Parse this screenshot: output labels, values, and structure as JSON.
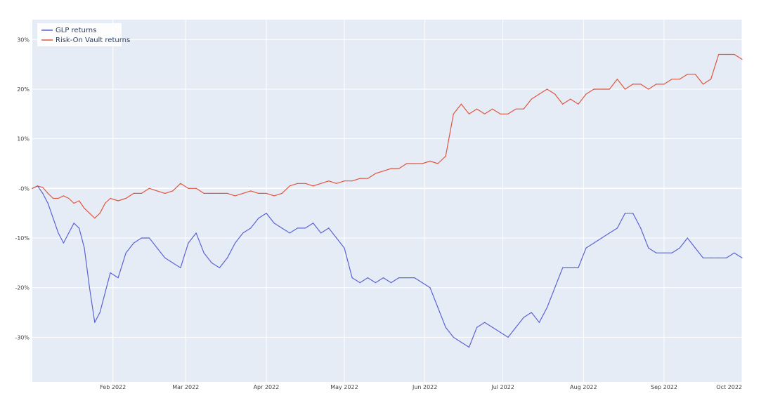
{
  "chart_data": {
    "type": "line",
    "title": "",
    "xlabel": "",
    "ylabel": "",
    "x_ticks": [
      "Feb 2022",
      "Mar 2022",
      "Apr 2022",
      "May 2022",
      "Jun 2022",
      "Jul 2022",
      "Aug 2022",
      "Sep 2022",
      "Oct 2022"
    ],
    "y_ticks": [
      "-30%",
      "-20%",
      "-10%",
      "-0%",
      "10%",
      "20%",
      "30%"
    ],
    "xlim": [
      "2022-01-01",
      "2022-10-01"
    ],
    "ylim": [
      -0.39,
      0.34
    ],
    "grid": true,
    "legend_position": "top-left",
    "colors": {
      "plot_bg": "#e5ecf6",
      "grid": "#ffffff",
      "glp": "#5a64d2",
      "riskon": "#e2553f"
    },
    "series": [
      {
        "name": "GLP returns",
        "color": "#5a64d2",
        "x": [
          "2022-01-01",
          "2022-01-03",
          "2022-01-05",
          "2022-01-07",
          "2022-01-09",
          "2022-01-11",
          "2022-01-13",
          "2022-01-15",
          "2022-01-17",
          "2022-01-19",
          "2022-01-21",
          "2022-01-23",
          "2022-01-25",
          "2022-01-27",
          "2022-01-29",
          "2022-01-31",
          "2022-02-03",
          "2022-02-06",
          "2022-02-09",
          "2022-02-12",
          "2022-02-15",
          "2022-02-18",
          "2022-02-21",
          "2022-02-24",
          "2022-02-27",
          "2022-03-02",
          "2022-03-05",
          "2022-03-08",
          "2022-03-11",
          "2022-03-14",
          "2022-03-17",
          "2022-03-20",
          "2022-03-23",
          "2022-03-26",
          "2022-03-29",
          "2022-04-01",
          "2022-04-04",
          "2022-04-07",
          "2022-04-10",
          "2022-04-13",
          "2022-04-16",
          "2022-04-19",
          "2022-04-22",
          "2022-04-25",
          "2022-04-28",
          "2022-05-01",
          "2022-05-04",
          "2022-05-07",
          "2022-05-10",
          "2022-05-13",
          "2022-05-16",
          "2022-05-19",
          "2022-05-22",
          "2022-05-25",
          "2022-05-28",
          "2022-05-31",
          "2022-06-03",
          "2022-06-06",
          "2022-06-09",
          "2022-06-12",
          "2022-06-15",
          "2022-06-18",
          "2022-06-21",
          "2022-06-24",
          "2022-06-27",
          "2022-06-30",
          "2022-07-03",
          "2022-07-06",
          "2022-07-09",
          "2022-07-12",
          "2022-07-15",
          "2022-07-18",
          "2022-07-21",
          "2022-07-24",
          "2022-07-27",
          "2022-07-30",
          "2022-08-02",
          "2022-08-05",
          "2022-08-08",
          "2022-08-11",
          "2022-08-14",
          "2022-08-17",
          "2022-08-20",
          "2022-08-23",
          "2022-08-26",
          "2022-08-29",
          "2022-09-01",
          "2022-09-04",
          "2022-09-07",
          "2022-09-10",
          "2022-09-13",
          "2022-09-16",
          "2022-09-19",
          "2022-09-22",
          "2022-09-25",
          "2022-09-28",
          "2022-10-01"
        ],
        "y": [
          0.0,
          0.005,
          -0.01,
          -0.03,
          -0.06,
          -0.09,
          -0.11,
          -0.09,
          -0.07,
          -0.08,
          -0.12,
          -0.2,
          -0.27,
          -0.25,
          -0.21,
          -0.17,
          -0.18,
          -0.13,
          -0.11,
          -0.1,
          -0.1,
          -0.12,
          -0.14,
          -0.15,
          -0.16,
          -0.11,
          -0.09,
          -0.13,
          -0.15,
          -0.16,
          -0.14,
          -0.11,
          -0.09,
          -0.08,
          -0.06,
          -0.05,
          -0.07,
          -0.08,
          -0.09,
          -0.08,
          -0.08,
          -0.07,
          -0.09,
          -0.08,
          -0.1,
          -0.12,
          -0.18,
          -0.19,
          -0.18,
          -0.19,
          -0.18,
          -0.19,
          -0.18,
          -0.18,
          -0.18,
          -0.19,
          -0.2,
          -0.24,
          -0.28,
          -0.3,
          -0.31,
          -0.32,
          -0.28,
          -0.27,
          -0.28,
          -0.29,
          -0.3,
          -0.28,
          -0.26,
          -0.25,
          -0.27,
          -0.24,
          -0.2,
          -0.16,
          -0.16,
          -0.16,
          -0.12,
          -0.11,
          -0.1,
          -0.09,
          -0.08,
          -0.05,
          -0.05,
          -0.08,
          -0.12,
          -0.13,
          -0.13,
          -0.13,
          -0.12,
          -0.1,
          -0.12,
          -0.14,
          -0.14,
          -0.14,
          -0.14,
          -0.13,
          -0.14
        ]
      },
      {
        "name": "Risk-On Vault returns",
        "color": "#e2553f",
        "x": [
          "2022-01-01",
          "2022-01-03",
          "2022-01-05",
          "2022-01-07",
          "2022-01-09",
          "2022-01-11",
          "2022-01-13",
          "2022-01-15",
          "2022-01-17",
          "2022-01-19",
          "2022-01-21",
          "2022-01-23",
          "2022-01-25",
          "2022-01-27",
          "2022-01-29",
          "2022-01-31",
          "2022-02-03",
          "2022-02-06",
          "2022-02-09",
          "2022-02-12",
          "2022-02-15",
          "2022-02-18",
          "2022-02-21",
          "2022-02-24",
          "2022-02-27",
          "2022-03-02",
          "2022-03-05",
          "2022-03-08",
          "2022-03-11",
          "2022-03-14",
          "2022-03-17",
          "2022-03-20",
          "2022-03-23",
          "2022-03-26",
          "2022-03-29",
          "2022-04-01",
          "2022-04-04",
          "2022-04-07",
          "2022-04-10",
          "2022-04-13",
          "2022-04-16",
          "2022-04-19",
          "2022-04-22",
          "2022-04-25",
          "2022-04-28",
          "2022-05-01",
          "2022-05-04",
          "2022-05-07",
          "2022-05-10",
          "2022-05-13",
          "2022-05-16",
          "2022-05-19",
          "2022-05-22",
          "2022-05-25",
          "2022-05-28",
          "2022-05-31",
          "2022-06-03",
          "2022-06-06",
          "2022-06-09",
          "2022-06-12",
          "2022-06-15",
          "2022-06-18",
          "2022-06-21",
          "2022-06-24",
          "2022-06-27",
          "2022-06-30",
          "2022-07-03",
          "2022-07-06",
          "2022-07-09",
          "2022-07-12",
          "2022-07-15",
          "2022-07-18",
          "2022-07-21",
          "2022-07-24",
          "2022-07-27",
          "2022-07-30",
          "2022-08-02",
          "2022-08-05",
          "2022-08-08",
          "2022-08-11",
          "2022-08-14",
          "2022-08-17",
          "2022-08-20",
          "2022-08-23",
          "2022-08-26",
          "2022-08-29",
          "2022-09-01",
          "2022-09-04",
          "2022-09-07",
          "2022-09-10",
          "2022-09-13",
          "2022-09-16",
          "2022-09-19",
          "2022-09-22",
          "2022-09-25",
          "2022-09-28",
          "2022-10-01"
        ],
        "y": [
          0.0,
          0.005,
          0.002,
          -0.01,
          -0.02,
          -0.02,
          -0.015,
          -0.02,
          -0.03,
          -0.025,
          -0.04,
          -0.05,
          -0.06,
          -0.05,
          -0.03,
          -0.02,
          -0.025,
          -0.02,
          -0.01,
          -0.01,
          0.0,
          -0.005,
          -0.01,
          -0.005,
          0.01,
          0.0,
          0.0,
          -0.01,
          -0.01,
          -0.01,
          -0.01,
          -0.015,
          -0.01,
          -0.005,
          -0.01,
          -0.01,
          -0.015,
          -0.01,
          0.005,
          0.01,
          0.01,
          0.005,
          0.01,
          0.015,
          0.01,
          0.015,
          0.015,
          0.02,
          0.02,
          0.03,
          0.035,
          0.04,
          0.04,
          0.05,
          0.05,
          0.05,
          0.055,
          0.05,
          0.065,
          0.15,
          0.17,
          0.15,
          0.16,
          0.15,
          0.16,
          0.15,
          0.15,
          0.16,
          0.16,
          0.18,
          0.19,
          0.2,
          0.19,
          0.17,
          0.18,
          0.17,
          0.19,
          0.2,
          0.2,
          0.2,
          0.22,
          0.2,
          0.21,
          0.21,
          0.2,
          0.21,
          0.21,
          0.22,
          0.22,
          0.23,
          0.23,
          0.21,
          0.22,
          0.27,
          0.27,
          0.27,
          0.26
        ]
      }
    ]
  }
}
